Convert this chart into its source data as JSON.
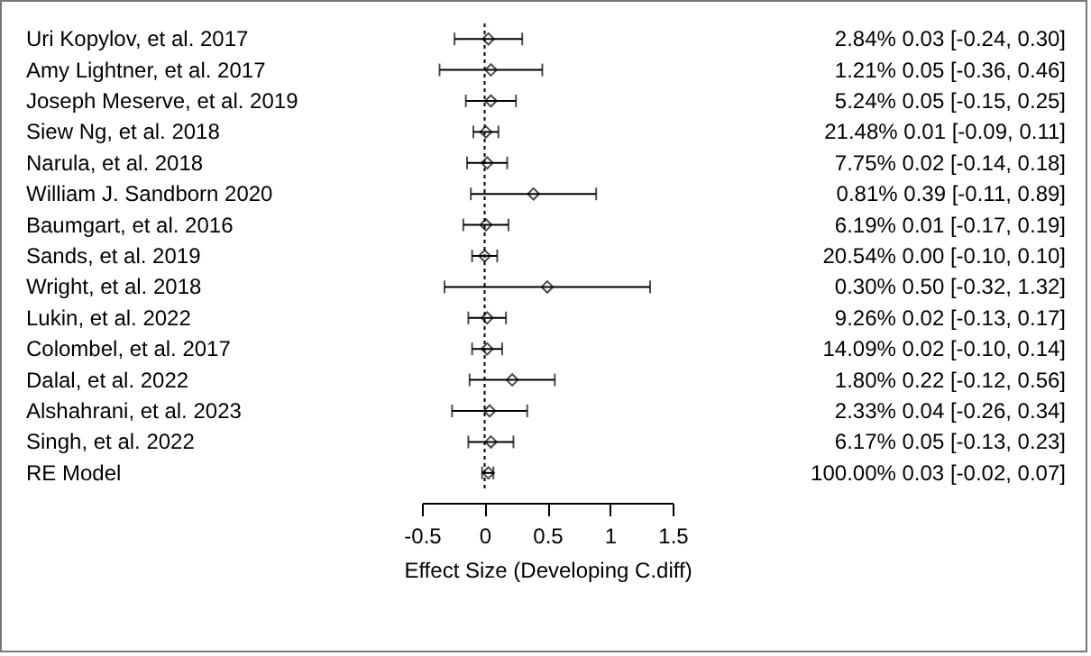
{
  "chart_data": {
    "type": "scatter",
    "xlabel": "Effect Size (Developing C.diff)",
    "categories": [
      "Uri Kopylov, et al.  2017",
      "Amy Lightner, et al.  2017",
      "Joseph Meserve, et al.  2019",
      "Siew Ng, et al.  2018",
      "Narula, et al.  2018",
      "William J. Sandborn  2020",
      "Baumgart, et al.  2016",
      "Sands, et al.  2019",
      "Wright, et al.  2018",
      "Lukin, et al.  2022",
      "Colombel, et al.  2017",
      "Dalal, et al.  2022",
      "Alshahrani, et  al.  2023",
      "Singh, et  al. 2022",
      "RE Model"
    ],
    "values": [
      0.03,
      0.05,
      0.05,
      0.01,
      0.02,
      0.39,
      0.01,
      0.0,
      0.5,
      0.02,
      0.02,
      0.22,
      0.04,
      0.05,
      0.03
    ],
    "errors": [
      [
        -0.24,
        0.3
      ],
      [
        -0.36,
        0.46
      ],
      [
        -0.15,
        0.25
      ],
      [
        -0.09,
        0.11
      ],
      [
        -0.14,
        0.18
      ],
      [
        -0.11,
        0.89
      ],
      [
        -0.17,
        0.19
      ],
      [
        -0.1,
        0.1
      ],
      [
        -0.32,
        1.32
      ],
      [
        -0.13,
        0.17
      ],
      [
        -0.1,
        0.14
      ],
      [
        -0.12,
        0.56
      ],
      [
        -0.26,
        0.34
      ],
      [
        -0.13,
        0.23
      ],
      [
        -0.02,
        0.07
      ]
    ],
    "value_labels": [
      "2.84%  0.03 [-0.24, 0.30]",
      "1.21%  0.05 [-0.36, 0.46]",
      "5.24%  0.05 [-0.15, 0.25]",
      "21.48%  0.01 [-0.09, 0.11]",
      "7.75%  0.02 [-0.14, 0.18]",
      "0.81%  0.39 [-0.11, 0.89]",
      "6.19%  0.01 [-0.17, 0.19]",
      "20.54%  0.00 [-0.10, 0.10]",
      "0.30%  0.50 [-0.32, 1.32]",
      "9.26%  0.02 [-0.13, 0.17]",
      "14.09%  0.02 [-0.10, 0.14]",
      "1.80%  0.22 [-0.12, 0.56]",
      "2.33%  0.04 [-0.26, 0.34]",
      "6.17%  0.05 [-0.13, 0.23]",
      "100.00%  0.03 [-0.02, 0.07]"
    ],
    "xlim": [
      -0.5,
      1.5
    ],
    "xticks": [
      -0.5,
      0,
      0.5,
      1,
      1.5
    ],
    "ref_lines": [
      {
        "axis": "x",
        "value": 0,
        "line_style": "dotted"
      }
    ],
    "marker": "diamond",
    "grid": false,
    "orientation": "horizontal"
  }
}
